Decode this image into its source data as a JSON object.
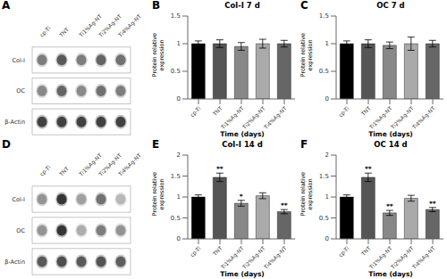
{
  "chart_data": [
    {
      "type": "heatmap",
      "annotations": [
        "A"
      ],
      "categories": [
        "cp-Ti",
        "TNT",
        "Ti1%Ag-NT",
        "Ti2%Ag-NT",
        "Ti4%Ag-NT"
      ],
      "rows": [
        "Col-I",
        "OC",
        "β-Actin"
      ],
      "cells": [
        [
          0.55,
          0.7,
          0.55,
          0.65,
          0.6
        ],
        [
          0.5,
          0.65,
          0.5,
          0.6,
          0.55
        ],
        [
          0.8,
          0.8,
          0.8,
          0.8,
          0.8
        ]
      ]
    },
    {
      "type": "bar",
      "annotations": [
        "B"
      ],
      "title": "Col-I 7 d",
      "xlabel": "Time (days)",
      "ylabel": "Protein relative\nexpression",
      "categories": [
        "cp-Ti",
        "TNT",
        "Ti1%Ag-NT",
        "Ti2%Ag-NT",
        "Ti4%Ag-NT"
      ],
      "values": [
        1.0,
        1.0,
        0.95,
        1.0,
        1.0
      ],
      "errors": [
        0.05,
        0.07,
        0.07,
        0.08,
        0.06
      ],
      "stars": [
        null,
        null,
        null,
        null,
        null
      ],
      "colors": [
        "#000000",
        "#555555",
        "#888888",
        "#aaaaaa",
        "#666666"
      ],
      "ylim": [
        0,
        1.5
      ],
      "yticks": [
        0,
        0.5,
        1,
        1.5
      ]
    },
    {
      "type": "bar",
      "annotations": [
        "C"
      ],
      "title": "OC 7 d",
      "xlabel": "Time (days)",
      "ylabel": "Protein relative\nexpression",
      "categories": [
        "cp-Ti",
        "TNT",
        "Ti1%Ag-NT",
        "Ti2%Ag-NT",
        "Ti4%Ag-NT"
      ],
      "values": [
        1.0,
        1.0,
        0.97,
        1.0,
        1.0
      ],
      "errors": [
        0.05,
        0.07,
        0.06,
        0.12,
        0.06
      ],
      "stars": [
        null,
        null,
        null,
        null,
        null
      ],
      "colors": [
        "#000000",
        "#555555",
        "#888888",
        "#aaaaaa",
        "#666666"
      ],
      "ylim": [
        0,
        1.5
      ],
      "yticks": [
        0,
        0.5,
        1,
        1.5
      ]
    },
    {
      "type": "heatmap",
      "annotations": [
        "D"
      ],
      "categories": [
        "cp-Ti",
        "TNT",
        "Ti1%Ag-NT",
        "Ti2%Ag-NT",
        "Ti4%Ag-NT"
      ],
      "rows": [
        "Col-I",
        "OC",
        "β-Actin"
      ],
      "cells": [
        [
          0.45,
          0.85,
          0.4,
          0.6,
          0.3
        ],
        [
          0.45,
          0.85,
          0.35,
          0.55,
          0.45
        ],
        [
          0.7,
          0.75,
          0.7,
          0.72,
          0.68
        ]
      ]
    },
    {
      "type": "bar",
      "annotations": [
        "E"
      ],
      "title": "Col-I 14 d",
      "xlabel": "Time (days)",
      "ylabel": "Protein relative\nexpression",
      "categories": [
        "cp-Ti",
        "TNT",
        "Ti1%Ag-NT",
        "Ti2%Ag-NT",
        "Ti4%Ag-NT"
      ],
      "values": [
        1.0,
        1.47,
        0.85,
        1.03,
        0.65
      ],
      "errors": [
        0.05,
        0.1,
        0.07,
        0.07,
        0.05
      ],
      "stars": [
        null,
        "**",
        "*",
        null,
        "**"
      ],
      "colors": [
        "#000000",
        "#555555",
        "#888888",
        "#aaaaaa",
        "#666666"
      ],
      "ylim": [
        0,
        2.0
      ],
      "yticks": [
        0,
        0.5,
        1,
        1.5,
        2
      ]
    },
    {
      "type": "bar",
      "annotations": [
        "F"
      ],
      "title": "OC 14 d",
      "xlabel": "Time (days)",
      "ylabel": "Protein relative\nexpression",
      "categories": [
        "cp-Ti",
        "TNT",
        "Ti1%Ag-NT",
        "Ti2%Ag-NT",
        "Ti4%Ag-NT"
      ],
      "values": [
        1.0,
        1.47,
        0.62,
        0.97,
        0.7
      ],
      "errors": [
        0.05,
        0.1,
        0.06,
        0.07,
        0.05
      ],
      "stars": [
        null,
        "**",
        "**",
        null,
        "**"
      ],
      "colors": [
        "#000000",
        "#555555",
        "#888888",
        "#aaaaaa",
        "#666666"
      ],
      "ylim": [
        0,
        2.0
      ],
      "yticks": [
        0,
        0.5,
        1,
        1.5,
        2
      ]
    }
  ]
}
